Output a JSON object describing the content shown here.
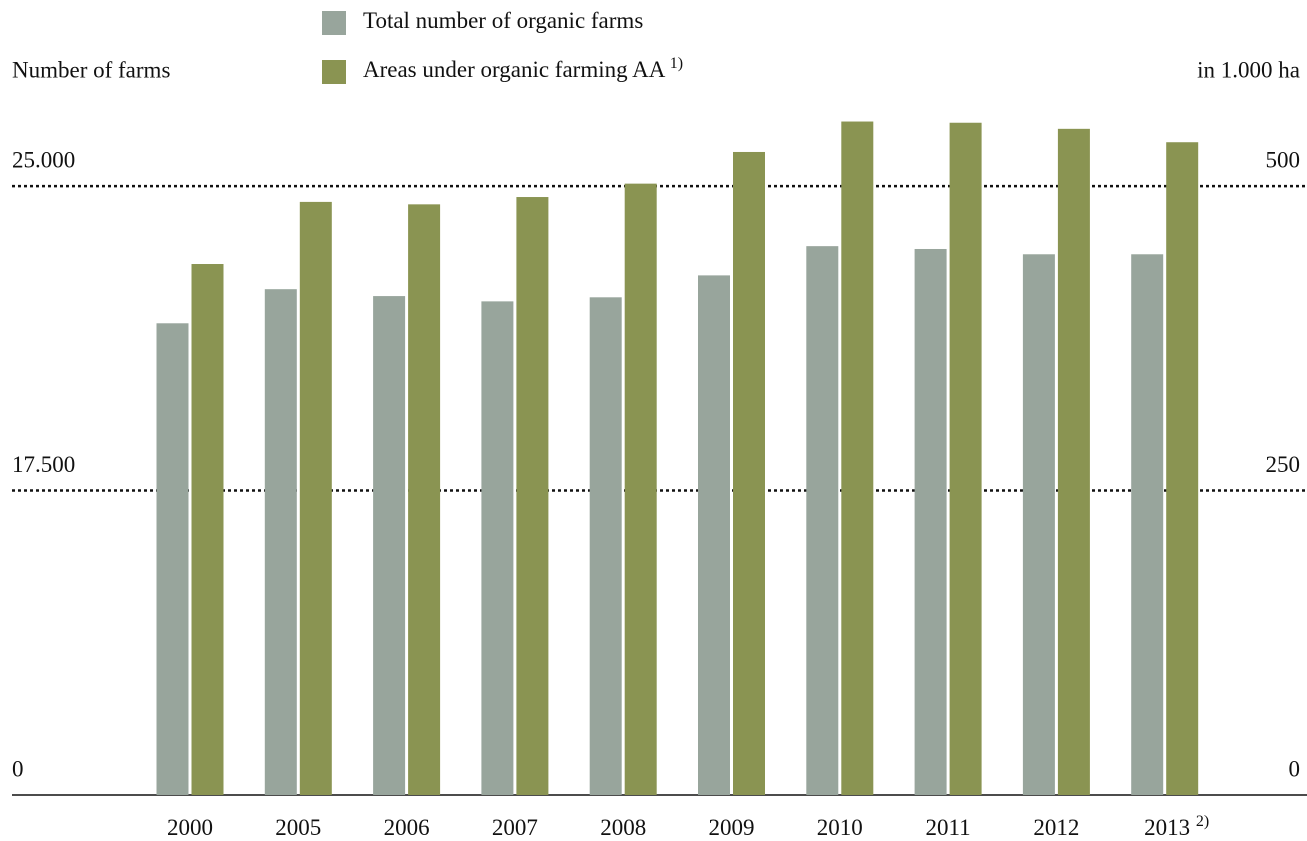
{
  "chart_data": {
    "type": "bar",
    "categories": [
      "2000",
      "2005",
      "2006",
      "2007",
      "2008",
      "2009",
      "2010",
      "2011",
      "2012",
      "2013"
    ],
    "category_footnotes": [
      null,
      null,
      null,
      null,
      null,
      null,
      null,
      null,
      null,
      "2)"
    ],
    "ylabel": "Number of farms",
    "y2label": "in 1.000 ha",
    "series": [
      {
        "name": "Total number of organic farms",
        "color": "#98a59c",
        "values": [
          21620,
          22460,
          22290,
          22160,
          22260,
          22800,
          23520,
          23450,
          23320,
          23320
        ]
      },
      {
        "name": "Areas under organic farming AA",
        "footnote": "1)",
        "color": "#8a9452",
        "axis": "y2",
        "values": [
          436,
          487,
          485,
          491,
          502,
          528,
          553,
          552,
          547,
          536
        ]
      }
    ],
    "ylim": [
      0,
      26800
    ],
    "yticks": [
      0,
      {
        "value": 17500,
        "label": "17.500"
      },
      {
        "value": 25000,
        "label": "25.000"
      }
    ],
    "y2lim": [
      0,
      560
    ],
    "y2ticks": [
      0,
      250,
      500
    ],
    "grid": true
  }
}
